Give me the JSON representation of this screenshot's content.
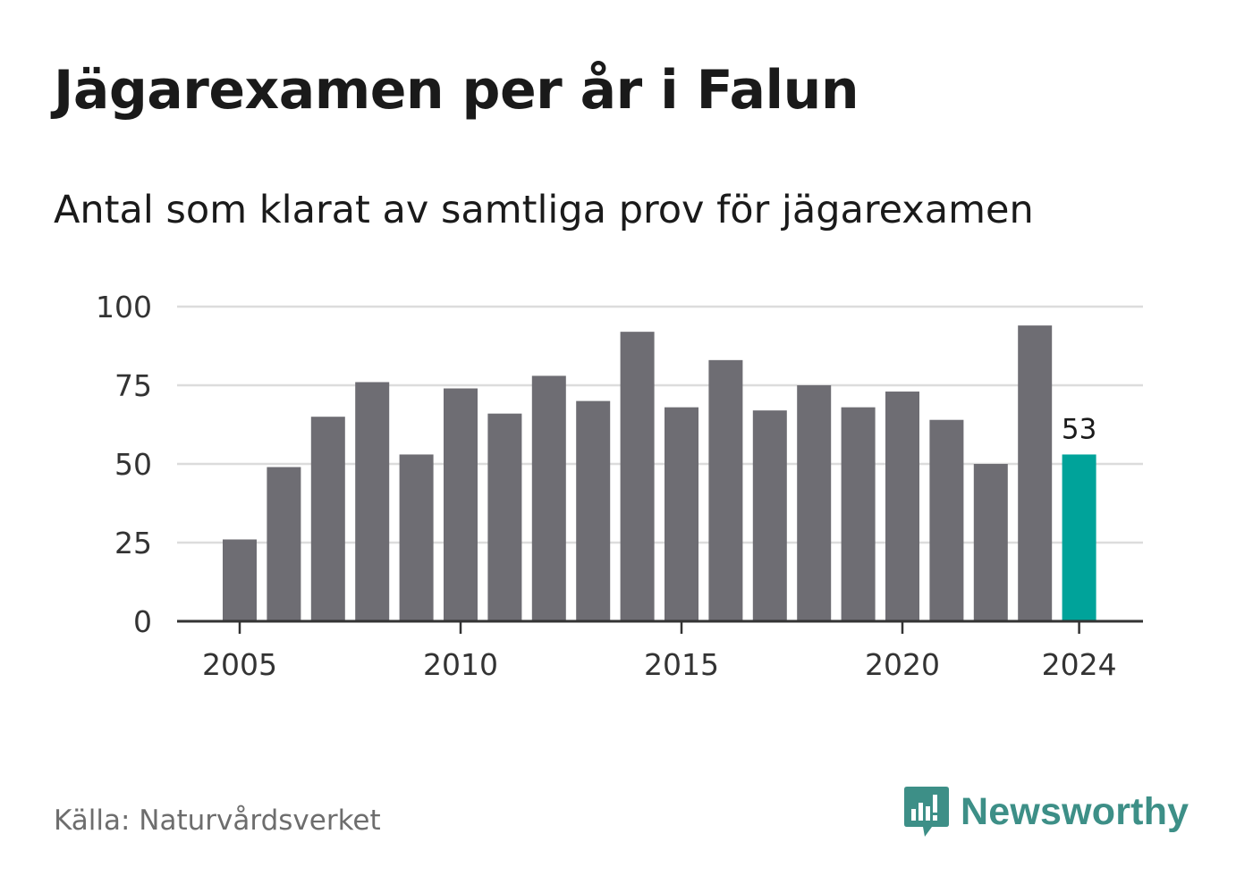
{
  "header": {
    "title": "Jägarexamen per år i Falun",
    "subtitle": "Antal som klarat av samtliga prov för jägarexamen"
  },
  "footer": {
    "source": "Källa: Naturvårdsverket",
    "logo_text": "Newsworthy",
    "logo_icon": "newsworthy-logo-icon"
  },
  "colors": {
    "bar": "#6e6d73",
    "highlight": "#00a39a",
    "grid": "#dcdcdc",
    "axis": "#333333",
    "logo": "#3d8f87"
  },
  "chart_data": {
    "type": "bar",
    "title": "Jägarexamen per år i Falun",
    "subtitle": "Antal som klarat av samtliga prov för jägarexamen",
    "x": [
      2005,
      2006,
      2007,
      2008,
      2009,
      2010,
      2011,
      2012,
      2013,
      2014,
      2015,
      2016,
      2017,
      2018,
      2019,
      2020,
      2021,
      2022,
      2023,
      2024
    ],
    "values": [
      26,
      49,
      65,
      76,
      53,
      74,
      66,
      78,
      70,
      92,
      68,
      83,
      67,
      75,
      68,
      73,
      64,
      50,
      94,
      53
    ],
    "ylim": [
      0,
      100
    ],
    "yticks": [
      0,
      25,
      50,
      75,
      100
    ],
    "xticks": [
      2005,
      2010,
      2015,
      2020,
      2024
    ],
    "highlight": {
      "x": 2024,
      "label": "53"
    },
    "grid": true,
    "xlabel": "",
    "ylabel": ""
  }
}
